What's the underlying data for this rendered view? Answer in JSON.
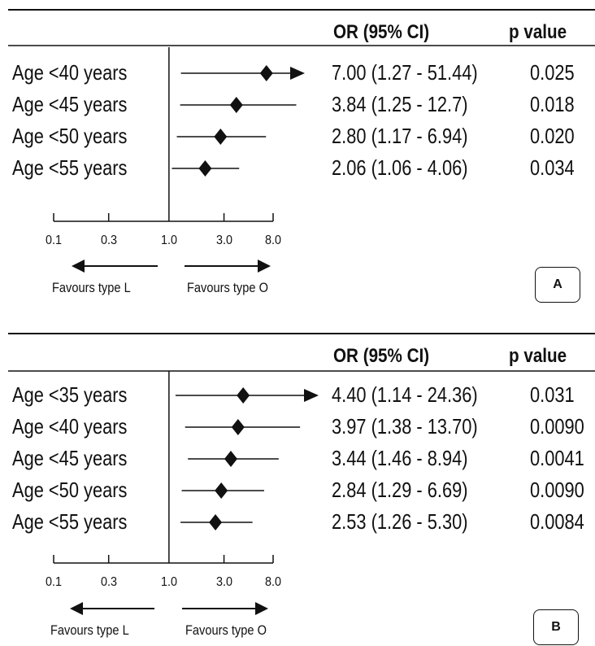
{
  "chart_data": [
    {
      "type": "forest",
      "panel_label": "A",
      "xscale": "log",
      "xticks": [
        "0.1",
        "0.3",
        "1.0",
        "3.0",
        "8.0"
      ],
      "xtick_values": [
        0.1,
        0.3,
        1.0,
        3.0,
        8.0
      ],
      "xlim": [
        0.1,
        8.0
      ],
      "null_value": 1.0,
      "or_header": "OR (95% CI)",
      "p_header": "p value",
      "favours_left": "Favours type L",
      "favours_right": "Favours type O",
      "rows": [
        {
          "label": "Age <40 years",
          "or_text": "7.00 (1.27 - 51.44)",
          "p_text": "0.025",
          "or": 7.0,
          "lo": 1.27,
          "hi": 51.44
        },
        {
          "label": "Age <45 years",
          "or_text": "3.84 (1.25 - 12.7)",
          "p_text": "0.018",
          "or": 3.84,
          "lo": 1.25,
          "hi": 12.7
        },
        {
          "label": "Age <50 years",
          "or_text": "2.80 (1.17 - 6.94)",
          "p_text": "0.020",
          "or": 2.8,
          "lo": 1.17,
          "hi": 6.94
        },
        {
          "label": "Age <55 years",
          "or_text": "2.06 (1.06 - 4.06)",
          "p_text": "0.034",
          "or": 2.06,
          "lo": 1.06,
          "hi": 4.06
        }
      ]
    },
    {
      "type": "forest",
      "panel_label": "B",
      "xscale": "log",
      "xticks": [
        "0.1",
        "0.3",
        "1.0",
        "3.0",
        "8.0"
      ],
      "xtick_values": [
        0.1,
        0.3,
        1.0,
        3.0,
        8.0
      ],
      "xlim": [
        0.1,
        8.0
      ],
      "null_value": 1.0,
      "or_header": "OR (95% CI)",
      "p_header": "p value",
      "favours_left": "Favours type L",
      "favours_right": "Favours type O",
      "rows": [
        {
          "label": "Age <35 years",
          "or_text": "4.40 (1.14 - 24.36)",
          "p_text": "0.031",
          "or": 4.4,
          "lo": 1.14,
          "hi": 24.36
        },
        {
          "label": "Age <40 years",
          "or_text": "3.97 (1.38 - 13.70)",
          "p_text": "0.0090",
          "or": 3.97,
          "lo": 1.38,
          "hi": 13.7
        },
        {
          "label": "Age <45 years",
          "or_text": "3.44 (1.46 - 8.94)",
          "p_text": "0.0041",
          "or": 3.44,
          "lo": 1.46,
          "hi": 8.94
        },
        {
          "label": "Age <50 years",
          "or_text": "2.84 (1.29 - 6.69)",
          "p_text": "0.0090",
          "or": 2.84,
          "lo": 1.29,
          "hi": 6.69
        },
        {
          "label": "Age <55 years",
          "or_text": "2.53 (1.26 - 5.30)",
          "p_text": "0.0084",
          "or": 2.53,
          "lo": 1.26,
          "hi": 5.3
        }
      ]
    }
  ]
}
